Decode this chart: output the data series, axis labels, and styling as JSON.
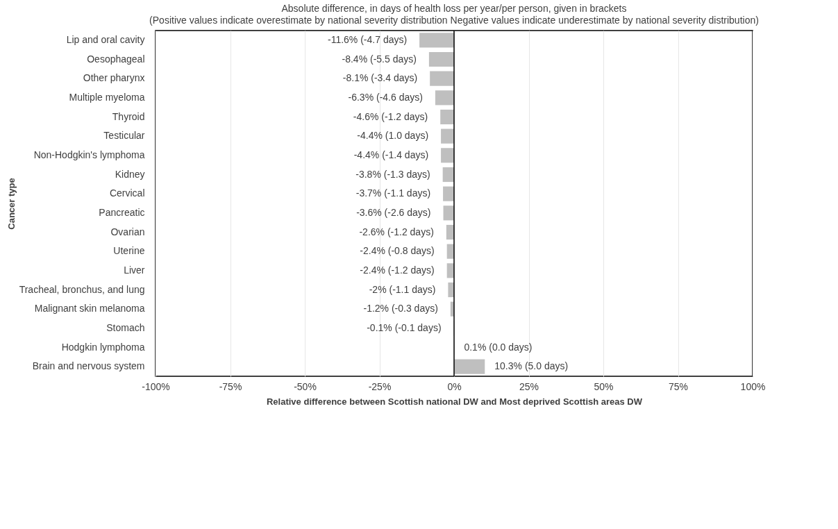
{
  "chart_data": {
    "type": "bar",
    "orientation": "horizontal",
    "title": "Absolute difference, in days of health loss per year/per person, given in brackets",
    "subtitle": "(Positive values indicate overestimate by national severity distribution Negative values indicate underestimate by national severity distribution)",
    "xlabel": "Relative difference between Scottish national DW and Most deprived Scottish areas DW",
    "ylabel": "Cancer type",
    "categories": [
      "Lip and oral cavity",
      "Oesophageal",
      "Other pharynx",
      "Multiple myeloma",
      "Thyroid",
      "Testicular",
      "Non-Hodgkin's lymphoma",
      "Kidney",
      "Cervical",
      "Pancreatic",
      "Ovarian",
      "Uterine",
      "Liver",
      "Tracheal, bronchus, and lung",
      "Malignant skin melanoma",
      "Stomach",
      "Hodgkin lymphoma",
      "Brain and nervous system"
    ],
    "values": [
      -11.6,
      -8.4,
      -8.1,
      -6.3,
      -4.6,
      -4.4,
      -4.4,
      -3.8,
      -3.7,
      -3.6,
      -2.6,
      -2.4,
      -2.4,
      -2,
      -1.2,
      -0.1,
      0.1,
      10.3
    ],
    "value_labels": [
      "-11.6% (-4.7 days)",
      "-8.4% (-5.5 days)",
      "-8.1% (-3.4 days)",
      "-6.3% (-4.6 days)",
      "-4.6% (-1.2 days)",
      "-4.4% (1.0 days)",
      "-4.4% (-1.4 days)",
      "-3.8% (-1.3 days)",
      "-3.7% (-1.1 days)",
      "-3.6% (-2.6 days)",
      "-2.6% (-1.2 days)",
      "-2.4% (-0.8 days)",
      "-2.4% (-1.2 days)",
      "-2% (-1.1 days)",
      "-1.2% (-0.3 days)",
      "-0.1% (-0.1 days)",
      "0.1% (0.0 days)",
      "10.3% (5.0 days)"
    ],
    "color": "#bfbfbf",
    "xlim": [
      -100,
      100
    ],
    "xticks": [
      {
        "value": -100,
        "label": "-100%"
      },
      {
        "value": -75,
        "label": "-75%"
      },
      {
        "value": -50,
        "label": "-50%"
      },
      {
        "value": -25,
        "label": "-25%"
      },
      {
        "value": 0,
        "label": "0%"
      },
      {
        "value": 25,
        "label": "25%"
      },
      {
        "value": 50,
        "label": "50%"
      },
      {
        "value": 75,
        "label": "75%"
      },
      {
        "value": 100,
        "label": "100%"
      }
    ],
    "ref_lines": [
      {
        "axis": "x",
        "value": 0,
        "color": "#000000"
      }
    ],
    "grid": "x"
  }
}
